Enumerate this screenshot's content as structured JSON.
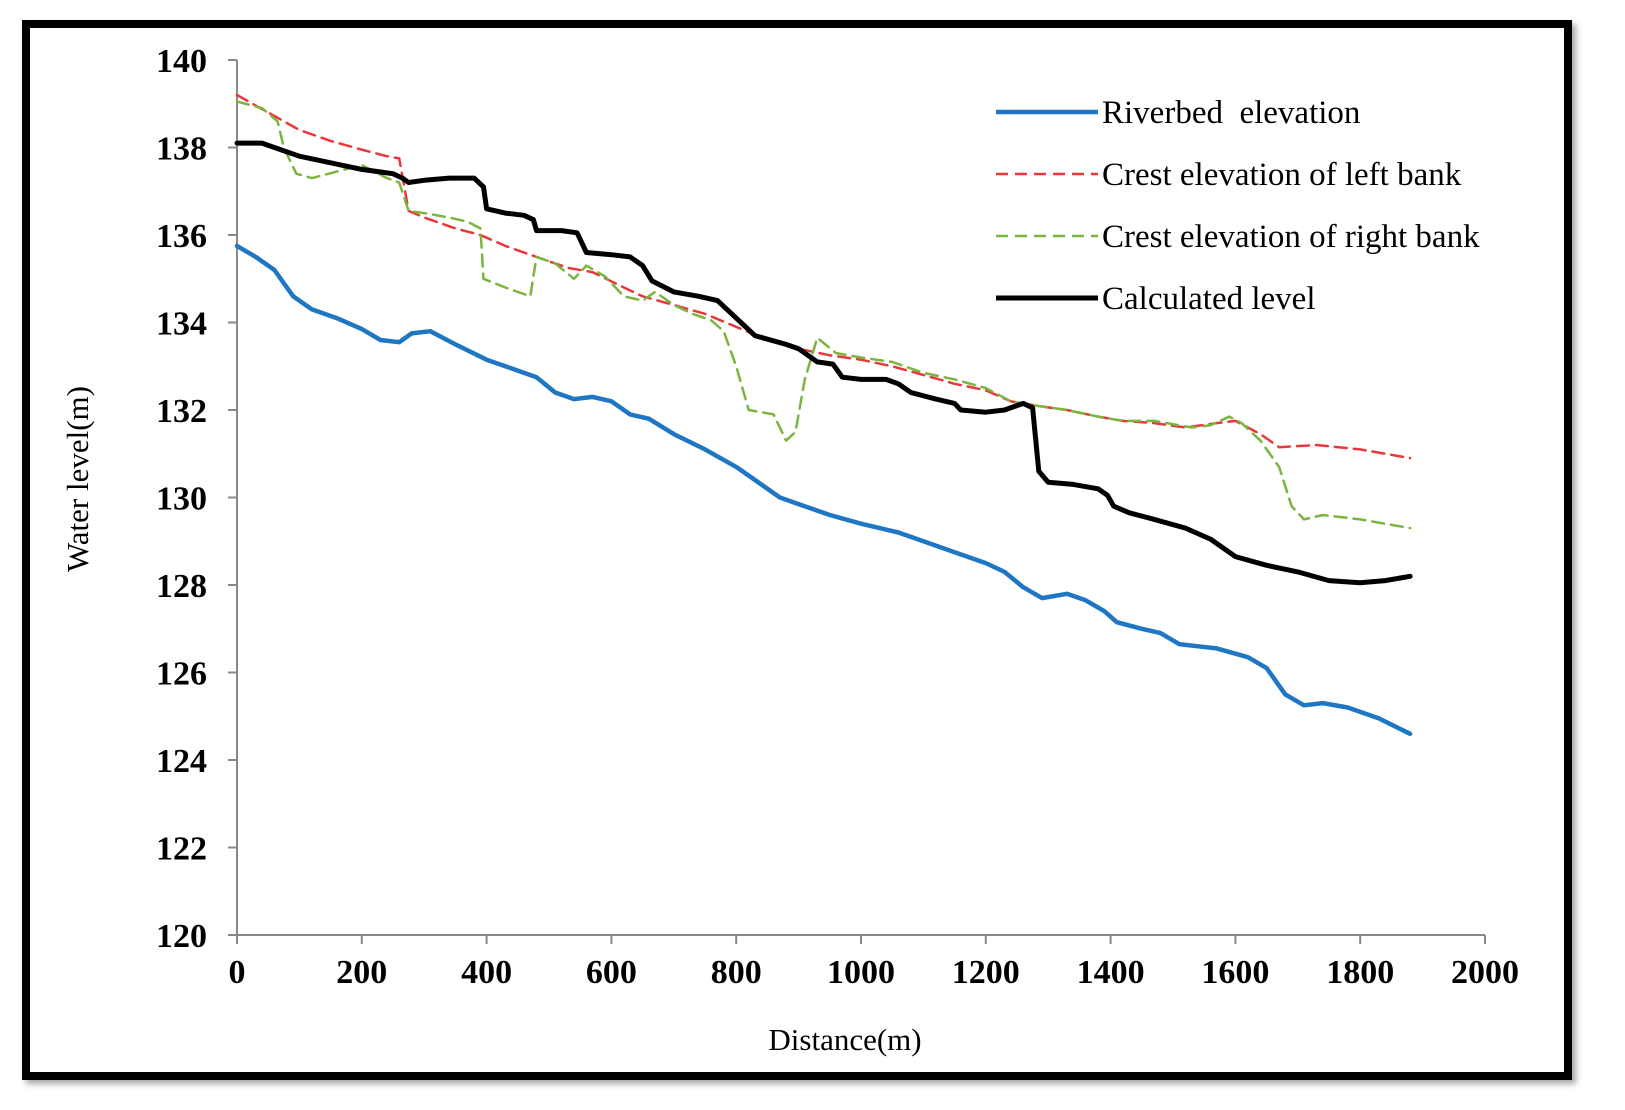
{
  "chart_data": {
    "type": "line",
    "xlabel": "Distance(m)",
    "ylabel": "Water level(m)",
    "xlim": [
      0,
      2000
    ],
    "ylim": [
      120,
      140
    ],
    "xticks": [
      0,
      200,
      400,
      600,
      800,
      1000,
      1200,
      1400,
      1600,
      1800,
      2000
    ],
    "yticks": [
      120,
      122,
      124,
      126,
      128,
      130,
      132,
      134,
      136,
      138,
      140
    ],
    "grid": false,
    "legend_position": "top-right",
    "series": [
      {
        "name": "Riverbed  elevation",
        "color": "#1f77c4",
        "style": "solid",
        "points": [
          [
            0,
            135.75
          ],
          [
            30,
            135.5
          ],
          [
            60,
            135.2
          ],
          [
            90,
            134.6
          ],
          [
            120,
            134.3
          ],
          [
            160,
            134.1
          ],
          [
            200,
            133.85
          ],
          [
            230,
            133.6
          ],
          [
            260,
            133.55
          ],
          [
            280,
            133.75
          ],
          [
            310,
            133.8
          ],
          [
            350,
            133.5
          ],
          [
            400,
            133.15
          ],
          [
            450,
            132.9
          ],
          [
            480,
            132.75
          ],
          [
            510,
            132.4
          ],
          [
            540,
            132.25
          ],
          [
            570,
            132.3
          ],
          [
            600,
            132.2
          ],
          [
            630,
            131.9
          ],
          [
            660,
            131.8
          ],
          [
            700,
            131.45
          ],
          [
            750,
            131.1
          ],
          [
            800,
            130.7
          ],
          [
            840,
            130.3
          ],
          [
            870,
            130.0
          ],
          [
            900,
            129.85
          ],
          [
            950,
            129.6
          ],
          [
            1000,
            129.4
          ],
          [
            1030,
            129.3
          ],
          [
            1060,
            129.2
          ],
          [
            1100,
            129.0
          ],
          [
            1150,
            128.75
          ],
          [
            1200,
            128.5
          ],
          [
            1230,
            128.3
          ],
          [
            1260,
            127.95
          ],
          [
            1290,
            127.7
          ],
          [
            1330,
            127.8
          ],
          [
            1360,
            127.65
          ],
          [
            1390,
            127.4
          ],
          [
            1410,
            127.15
          ],
          [
            1450,
            127.0
          ],
          [
            1480,
            126.9
          ],
          [
            1510,
            126.65
          ],
          [
            1540,
            126.6
          ],
          [
            1570,
            126.55
          ],
          [
            1620,
            126.35
          ],
          [
            1650,
            126.1
          ],
          [
            1680,
            125.5
          ],
          [
            1710,
            125.25
          ],
          [
            1740,
            125.3
          ],
          [
            1780,
            125.2
          ],
          [
            1830,
            124.95
          ],
          [
            1880,
            124.6
          ]
        ]
      },
      {
        "name": "Crest elevation of left bank",
        "color": "#e8383b",
        "style": "dashed",
        "points": [
          [
            0,
            139.2
          ],
          [
            50,
            138.8
          ],
          [
            100,
            138.4
          ],
          [
            150,
            138.15
          ],
          [
            200,
            137.95
          ],
          [
            240,
            137.8
          ],
          [
            260,
            137.75
          ],
          [
            275,
            136.55
          ],
          [
            300,
            136.4
          ],
          [
            350,
            136.15
          ],
          [
            390,
            136.0
          ],
          [
            430,
            135.75
          ],
          [
            480,
            135.5
          ],
          [
            530,
            135.25
          ],
          [
            570,
            135.15
          ],
          [
            620,
            134.8
          ],
          [
            650,
            134.6
          ],
          [
            700,
            134.4
          ],
          [
            750,
            134.2
          ],
          [
            800,
            133.9
          ],
          [
            850,
            133.6
          ],
          [
            900,
            133.4
          ],
          [
            950,
            133.25
          ],
          [
            1000,
            133.15
          ],
          [
            1050,
            133.0
          ],
          [
            1100,
            132.8
          ],
          [
            1150,
            132.6
          ],
          [
            1200,
            132.45
          ],
          [
            1240,
            132.2
          ],
          [
            1280,
            132.1
          ],
          [
            1330,
            132.0
          ],
          [
            1380,
            131.85
          ],
          [
            1420,
            131.75
          ],
          [
            1470,
            131.7
          ],
          [
            1520,
            131.6
          ],
          [
            1570,
            131.7
          ],
          [
            1600,
            131.75
          ],
          [
            1640,
            131.45
          ],
          [
            1670,
            131.15
          ],
          [
            1730,
            131.2
          ],
          [
            1800,
            131.1
          ],
          [
            1880,
            130.9
          ]
        ]
      },
      {
        "name": "Crest elevation of right bank",
        "color": "#7ab63f",
        "style": "dashed",
        "points": [
          [
            0,
            139.05
          ],
          [
            40,
            138.9
          ],
          [
            65,
            138.6
          ],
          [
            75,
            138.0
          ],
          [
            95,
            137.4
          ],
          [
            120,
            137.3
          ],
          [
            160,
            137.45
          ],
          [
            200,
            137.6
          ],
          [
            240,
            137.3
          ],
          [
            260,
            137.2
          ],
          [
            275,
            136.55
          ],
          [
            300,
            136.5
          ],
          [
            340,
            136.4
          ],
          [
            370,
            136.3
          ],
          [
            390,
            136.15
          ],
          [
            395,
            135.0
          ],
          [
            430,
            134.8
          ],
          [
            470,
            134.6
          ],
          [
            480,
            135.5
          ],
          [
            510,
            135.35
          ],
          [
            540,
            135.0
          ],
          [
            560,
            135.3
          ],
          [
            590,
            135.05
          ],
          [
            620,
            134.6
          ],
          [
            650,
            134.5
          ],
          [
            670,
            134.7
          ],
          [
            700,
            134.4
          ],
          [
            730,
            134.2
          ],
          [
            760,
            134.05
          ],
          [
            780,
            133.8
          ],
          [
            800,
            133.0
          ],
          [
            820,
            132.0
          ],
          [
            860,
            131.9
          ],
          [
            880,
            131.3
          ],
          [
            895,
            131.5
          ],
          [
            910,
            132.7
          ],
          [
            930,
            133.65
          ],
          [
            960,
            133.3
          ],
          [
            1000,
            133.2
          ],
          [
            1050,
            133.1
          ],
          [
            1100,
            132.85
          ],
          [
            1150,
            132.7
          ],
          [
            1200,
            132.5
          ],
          [
            1240,
            132.2
          ],
          [
            1280,
            132.1
          ],
          [
            1330,
            132.0
          ],
          [
            1380,
            131.85
          ],
          [
            1420,
            131.75
          ],
          [
            1470,
            131.75
          ],
          [
            1530,
            131.6
          ],
          [
            1560,
            131.65
          ],
          [
            1590,
            131.85
          ],
          [
            1610,
            131.7
          ],
          [
            1640,
            131.3
          ],
          [
            1670,
            130.7
          ],
          [
            1690,
            129.8
          ],
          [
            1710,
            129.5
          ],
          [
            1740,
            129.6
          ],
          [
            1800,
            129.5
          ],
          [
            1880,
            129.3
          ]
        ]
      },
      {
        "name": "Calculated level",
        "color": "#000000",
        "style": "solid",
        "points": [
          [
            0,
            138.1
          ],
          [
            40,
            138.1
          ],
          [
            60,
            138.0
          ],
          [
            100,
            137.8
          ],
          [
            150,
            137.65
          ],
          [
            200,
            137.5
          ],
          [
            250,
            137.4
          ],
          [
            265,
            137.3
          ],
          [
            275,
            137.2
          ],
          [
            300,
            137.25
          ],
          [
            340,
            137.3
          ],
          [
            380,
            137.3
          ],
          [
            395,
            137.1
          ],
          [
            400,
            136.6
          ],
          [
            430,
            136.5
          ],
          [
            460,
            136.45
          ],
          [
            475,
            136.35
          ],
          [
            480,
            136.1
          ],
          [
            520,
            136.1
          ],
          [
            545,
            136.05
          ],
          [
            560,
            135.6
          ],
          [
            600,
            135.55
          ],
          [
            630,
            135.5
          ],
          [
            650,
            135.3
          ],
          [
            665,
            134.95
          ],
          [
            700,
            134.7
          ],
          [
            740,
            134.6
          ],
          [
            770,
            134.5
          ],
          [
            800,
            134.1
          ],
          [
            830,
            133.7
          ],
          [
            880,
            133.5
          ],
          [
            900,
            133.4
          ],
          [
            930,
            133.1
          ],
          [
            955,
            133.05
          ],
          [
            970,
            132.75
          ],
          [
            1000,
            132.7
          ],
          [
            1040,
            132.7
          ],
          [
            1060,
            132.6
          ],
          [
            1080,
            132.4
          ],
          [
            1120,
            132.25
          ],
          [
            1150,
            132.15
          ],
          [
            1160,
            132.0
          ],
          [
            1200,
            131.95
          ],
          [
            1230,
            132.0
          ],
          [
            1260,
            132.15
          ],
          [
            1275,
            132.05
          ],
          [
            1285,
            130.6
          ],
          [
            1300,
            130.35
          ],
          [
            1340,
            130.3
          ],
          [
            1380,
            130.2
          ],
          [
            1395,
            130.05
          ],
          [
            1405,
            129.8
          ],
          [
            1430,
            129.65
          ],
          [
            1470,
            129.5
          ],
          [
            1520,
            129.3
          ],
          [
            1560,
            129.05
          ],
          [
            1600,
            128.65
          ],
          [
            1650,
            128.45
          ],
          [
            1700,
            128.3
          ],
          [
            1750,
            128.1
          ],
          [
            1800,
            128.05
          ],
          [
            1840,
            128.1
          ],
          [
            1880,
            128.2
          ]
        ]
      }
    ]
  }
}
